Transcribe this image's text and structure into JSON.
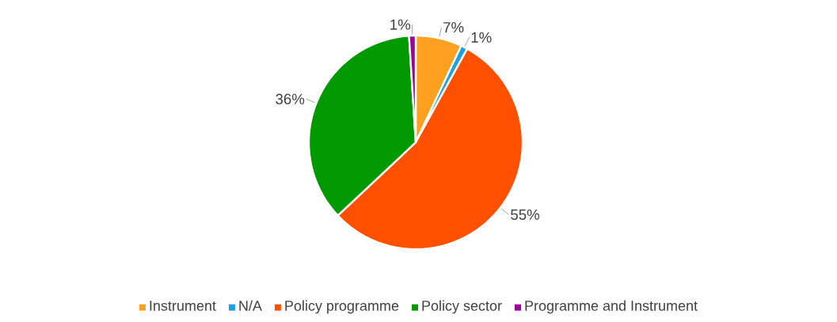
{
  "chart_data": {
    "type": "pie",
    "categories": [
      "Instrument",
      "N/A",
      "Policy programme",
      "Policy sector",
      "Programme and Instrument"
    ],
    "values": [
      7,
      1,
      55,
      36,
      1
    ],
    "value_labels": [
      "7%",
      "1%",
      "55%",
      "36%",
      "1%"
    ],
    "colors": [
      "#ffa020",
      "#1ba1e2",
      "#ff5000",
      "#009900",
      "#a0009c"
    ],
    "legend": "bottom"
  }
}
